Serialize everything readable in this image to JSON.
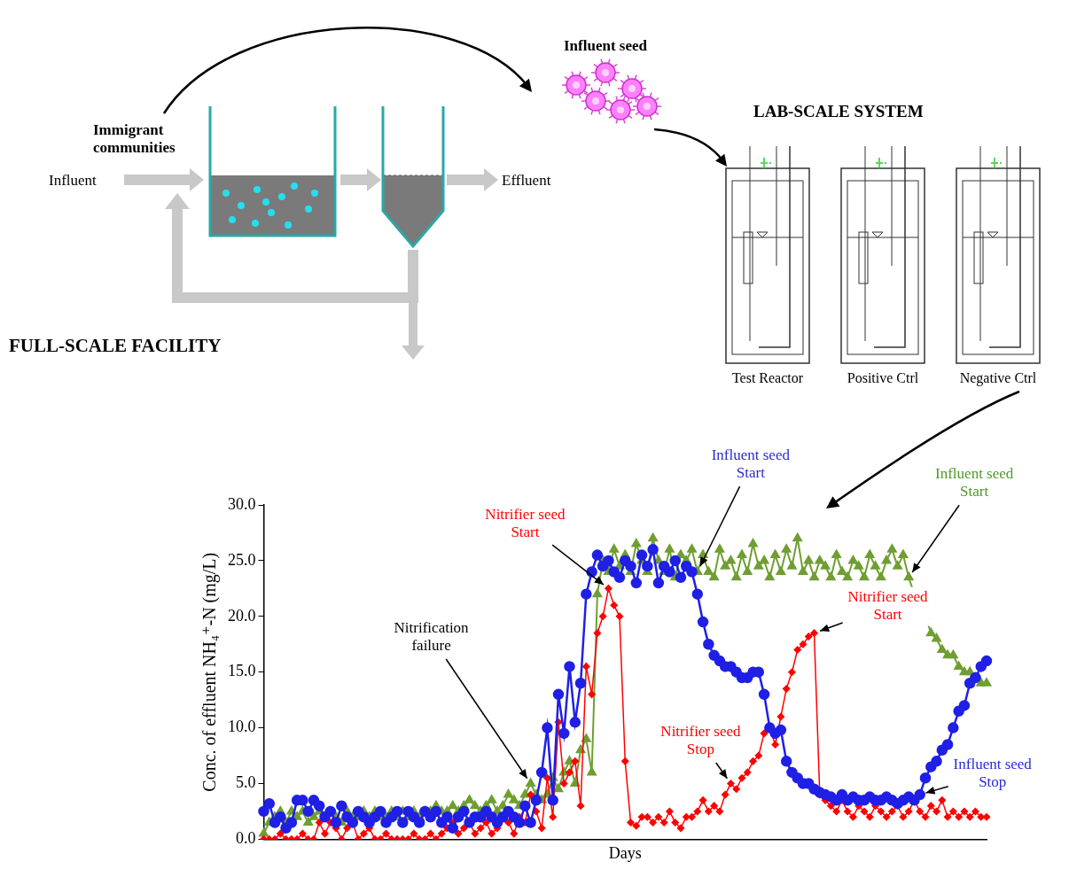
{
  "diagram": {
    "full_scale": {
      "title": "FULL-SCALE FACILITY",
      "influent": "Influent",
      "effluent": "Effluent",
      "immigrant_communities": [
        "Immigrant",
        "communities"
      ]
    },
    "influent_seed": "Influent seed",
    "lab_scale": {
      "title": "LAB-SCALE SYSTEM",
      "reactors": [
        "Test Reactor",
        "Positive Ctrl",
        "Negative Ctrl"
      ]
    }
  },
  "chart_data": {
    "type": "line",
    "x_label": "Days",
    "y_label": "Conc. of effluent NH₄⁺-N (mg/L)",
    "categories": [
      null,
      null,
      null,
      null,
      null,
      null,
      null,
      null,
      null,
      null,
      null,
      null,
      null,
      null,
      null,
      null,
      null,
      null,
      null,
      null,
      null,
      null,
      null,
      null,
      null,
      null,
      null,
      null,
      null,
      null,
      null,
      null,
      null,
      null,
      null,
      null,
      null,
      null,
      null,
      null,
      null,
      null,
      null,
      null,
      null,
      null,
      null,
      null,
      null,
      null,
      null,
      null,
      null,
      null,
      null,
      null,
      null,
      null,
      null,
      null,
      null,
      null,
      null,
      null,
      null,
      null,
      null,
      null,
      null,
      null,
      null,
      null,
      null,
      null,
      null,
      null,
      null,
      null,
      null,
      null,
      null,
      null,
      null,
      null,
      null,
      null,
      null,
      null,
      null,
      null,
      null,
      null,
      null,
      null,
      null,
      null,
      null,
      null,
      null,
      null,
      null,
      null,
      null,
      null,
      null,
      null,
      null,
      null,
      null,
      null,
      null,
      null,
      null,
      null,
      null,
      null,
      null,
      null,
      null,
      null,
      null,
      null,
      null,
      null,
      null,
      null,
      null,
      null,
      null,
      null,
      null
    ],
    "series": [
      {
        "color": "#1f1fe6",
        "marker": "circle",
        "line_style": "solid",
        "values": [
          2.5,
          3.2,
          1.5,
          2.0,
          1.0,
          1.5,
          3.5,
          3.5,
          2.5,
          3.5,
          3.0,
          2.0,
          2.5,
          1.5,
          3.0,
          2.0,
          1.5,
          2.5,
          2.0,
          1.5,
          2.0,
          2.5,
          1.5,
          2.0,
          2.5,
          1.5,
          2.5,
          2.0,
          1.5,
          2.5,
          2.0,
          2.5,
          1.5,
          2.0,
          1.0,
          2.0,
          2.5,
          1.5,
          2.0,
          2.0,
          2.5,
          2.0,
          1.5,
          2.0,
          2.5,
          2.0,
          1.5,
          3.0,
          1.5,
          3.5,
          6.0,
          10.0,
          3.5,
          13.0,
          9.5,
          15.5,
          10.5,
          14.0,
          22.0,
          24.0,
          25.5,
          24.5,
          25.0,
          24.0,
          23.5,
          25.0,
          24.5,
          23.0,
          25.5,
          24.5,
          26.0,
          23.0,
          24.5,
          24.0,
          25.0,
          23.5,
          24.5,
          24.0,
          22.0,
          19.5,
          17.5,
          16.5,
          16.0,
          15.5,
          15.5,
          15.0,
          14.5,
          14.5,
          15.0,
          15.0,
          13.0,
          10.0,
          9.5,
          9.8,
          7.0,
          6.0,
          5.5,
          5.0,
          5.0,
          4.5,
          4.2,
          4.0,
          3.8,
          3.5,
          4.0,
          3.5,
          3.8,
          3.5,
          3.5,
          3.8,
          3.5,
          3.5,
          3.8,
          3.5,
          3.2,
          3.5,
          3.8,
          3.5,
          4.0,
          5.5,
          6.5,
          7.0,
          8.0,
          8.5,
          10.0,
          11.5,
          12.0,
          14.0,
          14.5,
          15.5,
          16.0
        ]
      },
      {
        "color": "#ff0000",
        "marker": "diamond",
        "line_style": "solid",
        "values": [
          0,
          0,
          0,
          0.5,
          0,
          0,
          0,
          0.5,
          0,
          0,
          1.5,
          0.5,
          1.5,
          1.0,
          0,
          1.0,
          1.5,
          0,
          0.5,
          1.0,
          0,
          0,
          0.5,
          0,
          0,
          0,
          0,
          0.5,
          0,
          0,
          0.5,
          0,
          0.5,
          1.0,
          1.5,
          0.5,
          1.0,
          1.5,
          0.5,
          1.0,
          1.5,
          0.5,
          1.0,
          2.0,
          1.5,
          0.5,
          2.0,
          1.5,
          4.0,
          2.5,
          1.0,
          5.5,
          2.0,
          10.5,
          5.0,
          6.0,
          7.0,
          3.0,
          15.5,
          13.0,
          18.5,
          20.0,
          22.5,
          21.0,
          20.0,
          7.0,
          1.5,
          1.2,
          2.0,
          2.0,
          1.5,
          2.0,
          1.5,
          2.5,
          1.5,
          1.0,
          2.0,
          2.0,
          2.5,
          3.5,
          2.5,
          3.0,
          2.5,
          4.0,
          5.0,
          4.5,
          5.5,
          6.0,
          7.0,
          7.5,
          9.5,
          10.0,
          8.5,
          11.0,
          13.5,
          15.0,
          17.0,
          17.5,
          18.2,
          18.5,
          4.0,
          3.5,
          3.0,
          2.5,
          3.5,
          2.5,
          2.0,
          3.0,
          2.5,
          2.0,
          3.0,
          2.5,
          2.0,
          2.5,
          3.0,
          2.0,
          2.5,
          3.5,
          2.5,
          2.0,
          3.0,
          2.5,
          3.5,
          2.0,
          2.5,
          2.0,
          2.5,
          2.0,
          2.5,
          2.0,
          2.0
        ]
      },
      {
        "color": "#6f9e32",
        "marker": "triangle",
        "line_style": "solid",
        "values": [
          0.5,
          1.5,
          2.0,
          2.5,
          1.5,
          2.5,
          2.0,
          2.5,
          1.5,
          2.0,
          2.5,
          2.0,
          2.5,
          2.0,
          1.5,
          2.5,
          2.0,
          2.0,
          2.5,
          2.0,
          2.5,
          2.0,
          2.0,
          2.5,
          2.0,
          2.5,
          2.0,
          2.5,
          2.0,
          2.5,
          2.5,
          3.0,
          2.5,
          2.5,
          3.0,
          2.5,
          3.0,
          3.5,
          3.0,
          2.5,
          3.0,
          3.5,
          2.5,
          3.0,
          4.0,
          3.5,
          3.0,
          4.0,
          5.0,
          4.0,
          3.5,
          4.0,
          5.5,
          4.5,
          6.0,
          7.0,
          5.0,
          8.0,
          9.0,
          6.0,
          22.0,
          25.0,
          24.0,
          26.0,
          24.5,
          25.5,
          24.0,
          26.5,
          25.0,
          24.0,
          27.0,
          25.0,
          24.0,
          26.0,
          23.5,
          25.5,
          25.0,
          26.0,
          24.0,
          25.5,
          24.0,
          23.5,
          26.0,
          24.5,
          25.0,
          23.5,
          25.5,
          24.0,
          26.5,
          24.5,
          25.0,
          23.5,
          25.5,
          24.0,
          26.0,
          24.5,
          27.0,
          24.0,
          25.0,
          23.5,
          25.0,
          24.5,
          23.5,
          25.5,
          24.0,
          23.5,
          25.0,
          24.5,
          23.5,
          25.5,
          24.5,
          23.5,
          25.0,
          26.0,
          24.5,
          25.5,
          23.5,
          22.0,
          20.5,
          20.0,
          18.5,
          18.0,
          17.0,
          16.5,
          16.5,
          15.5,
          15.0,
          15.0,
          14.5,
          14.0,
          14.0
        ]
      }
    ],
    "ylim": [
      0,
      30
    ],
    "yticks": [
      {
        "value": 0,
        "label": "0.0"
      },
      {
        "value": 5,
        "label": "5.0"
      },
      {
        "value": 10,
        "label": "10.0"
      },
      {
        "value": 15,
        "label": "15.0"
      },
      {
        "value": 20,
        "label": "20.0"
      },
      {
        "value": 25,
        "label": "25.0"
      },
      {
        "value": 30,
        "label": "30.0"
      }
    ],
    "grid": false,
    "tick_labels": "y",
    "annotations": [
      {
        "text": [
          "Nitrification",
          "failure"
        ],
        "x": 48,
        "y": 5.0,
        "color": "#000000"
      },
      {
        "text": [
          "Nitrifier seed",
          "Start"
        ],
        "x": 62,
        "y": 22.5,
        "color": "#ff0000"
      },
      {
        "text": [
          "Influent seed",
          "Start"
        ],
        "x": 78,
        "y": 24.0,
        "color": "#2b2bd6"
      },
      {
        "text": [
          "Nitrifier seed",
          "Stop"
        ],
        "x": 84,
        "y": 5.0,
        "color": "#ff0000"
      },
      {
        "text": [
          "Nitrifier seed",
          "Start"
        ],
        "x": 99,
        "y": 18.5,
        "color": "#ff0000"
      },
      {
        "text": [
          "Influent seed",
          "Start"
        ],
        "x": 116,
        "y": 23.5,
        "color": "#4f9a2a"
      },
      {
        "text": [
          "Influent seed",
          "Stop"
        ],
        "x": 118,
        "y": 4.0,
        "color": "#2b2bd6"
      }
    ]
  }
}
